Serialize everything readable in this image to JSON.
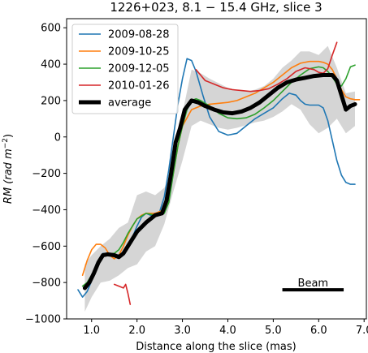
{
  "chart_data": {
    "type": "line",
    "title": "1226+023, 8.1 − 15.4 GHz, slice 3",
    "xlabel": "Distance along the slice (mas)",
    "ylabel_main": "RM (rad m",
    "ylabel_sup": "−2",
    "ylabel_close": ")",
    "xlim": [
      0.45,
      7.05
    ],
    "ylim": [
      -1000,
      650
    ],
    "xticks": [
      1.0,
      2.0,
      3.0,
      4.0,
      5.0,
      6.0,
      7.0
    ],
    "xtick_labels": [
      "1.0",
      "2.0",
      "3.0",
      "4.0",
      "5.0",
      "6.0",
      "7.0"
    ],
    "yticks": [
      -1000,
      -800,
      -600,
      -400,
      -200,
      0,
      200,
      400,
      600
    ],
    "ytick_labels": [
      "−1000",
      "−800",
      "−600",
      "−400",
      "−200",
      "0",
      "200",
      "400",
      "600"
    ],
    "grid": false,
    "legend_position": "top-left",
    "series": [
      {
        "name": "2009-08-28",
        "color": "#1f77b4",
        "x": [
          0.7,
          0.8,
          0.9,
          1.0,
          1.1,
          1.25,
          1.4,
          1.55,
          1.7,
          1.8,
          1.9,
          2.0,
          2.1,
          2.2,
          2.3,
          2.4,
          2.5,
          2.6,
          2.7,
          2.8,
          2.9,
          3.0,
          3.1,
          3.2,
          3.3,
          3.45,
          3.6,
          3.8,
          4.0,
          4.2,
          4.4,
          4.6,
          4.8,
          5.0,
          5.2,
          5.35,
          5.5,
          5.6,
          5.7,
          5.8,
          5.9,
          6.0,
          6.1,
          6.2,
          6.3,
          6.4,
          6.5,
          6.6,
          6.7,
          6.8
        ],
        "y": [
          -840,
          -880,
          -850,
          -790,
          -700,
          -640,
          -640,
          -650,
          -640,
          -600,
          -550,
          -490,
          -440,
          -420,
          -430,
          -430,
          -410,
          -330,
          -180,
          0,
          180,
          320,
          430,
          420,
          360,
          230,
          110,
          30,
          10,
          20,
          60,
          100,
          130,
          160,
          210,
          240,
          230,
          200,
          180,
          175,
          175,
          175,
          160,
          90,
          -20,
          -130,
          -210,
          -250,
          -260,
          -260
        ]
      },
      {
        "name": "2009-10-25",
        "color": "#ff7f0e",
        "x": [
          0.8,
          0.9,
          1.0,
          1.1,
          1.2,
          1.3,
          1.4,
          1.5,
          1.6,
          1.7,
          1.8,
          1.9,
          2.0,
          2.1,
          2.2,
          2.4,
          2.6,
          2.7,
          2.8,
          2.9,
          3.0,
          3.2,
          3.4,
          3.6,
          3.8,
          4.0,
          4.2,
          4.4,
          4.6,
          4.8,
          5.0,
          5.2,
          5.4,
          5.6,
          5.8,
          6.0,
          6.1,
          6.2,
          6.3,
          6.4,
          6.5,
          6.6,
          6.7,
          6.8,
          6.9
        ],
        "y": [
          -760,
          -680,
          -620,
          -590,
          -590,
          -610,
          -650,
          -670,
          -650,
          -600,
          -540,
          -490,
          -450,
          -430,
          -420,
          -420,
          -400,
          -330,
          -200,
          -50,
          60,
          150,
          170,
          180,
          185,
          190,
          200,
          220,
          240,
          270,
          300,
          340,
          380,
          405,
          415,
          415,
          410,
          400,
          370,
          320,
          260,
          220,
          210,
          205,
          205
        ]
      },
      {
        "name": "2009-12-05",
        "color": "#2ca02c",
        "x": [
          0.8,
          0.9,
          1.0,
          1.1,
          1.2,
          1.3,
          1.4,
          1.5,
          1.6,
          1.7,
          1.8,
          1.9,
          2.0,
          2.2,
          2.4,
          2.6,
          2.7,
          2.8,
          2.9,
          3.0,
          3.1,
          3.2,
          3.3,
          3.4,
          3.6,
          3.8,
          4.0,
          4.2,
          4.4,
          4.6,
          4.8,
          5.0,
          5.2,
          5.4,
          5.6,
          5.8,
          6.0,
          6.1,
          6.2,
          6.3,
          6.4,
          6.5,
          6.6,
          6.7,
          6.8
        ],
        "y": [
          -820,
          -800,
          -760,
          -710,
          -670,
          -640,
          -640,
          -640,
          -620,
          -580,
          -530,
          -490,
          -450,
          -420,
          -430,
          -420,
          -360,
          -200,
          -50,
          60,
          150,
          200,
          210,
          200,
          170,
          130,
          105,
          100,
          105,
          125,
          160,
          200,
          250,
          300,
          340,
          375,
          385,
          380,
          360,
          330,
          290,
          280,
          320,
          385,
          395
        ]
      },
      {
        "name": "2010-01-26",
        "color": "#d62728",
        "x": [
          1.5,
          1.6,
          1.7,
          1.75,
          1.8,
          1.85,
          null,
          3.3,
          3.4,
          3.5,
          3.7,
          3.9,
          4.1,
          4.3,
          4.5,
          4.7,
          4.9,
          5.1,
          5.3,
          5.5,
          5.7,
          5.9,
          6.0,
          6.1,
          6.2,
          6.3,
          6.4
        ],
        "y": [
          -810,
          -820,
          -830,
          -810,
          -860,
          -920,
          null,
          370,
          340,
          310,
          290,
          270,
          260,
          255,
          250,
          255,
          265,
          290,
          320,
          360,
          380,
          370,
          355,
          350,
          375,
          450,
          520
        ]
      },
      {
        "name": "average",
        "color": "#000000",
        "x": [
          0.85,
          0.95,
          1.05,
          1.15,
          1.25,
          1.35,
          1.5,
          1.6,
          1.7,
          1.8,
          1.9,
          2.0,
          2.2,
          2.4,
          2.55,
          2.65,
          2.75,
          2.85,
          2.95,
          3.05,
          3.2,
          3.35,
          3.5,
          3.7,
          3.9,
          4.1,
          4.3,
          4.5,
          4.7,
          4.9,
          5.1,
          5.3,
          5.5,
          5.7,
          5.9,
          6.1,
          6.3,
          6.4,
          6.5,
          6.6,
          6.7,
          6.8
        ],
        "y": [
          -830,
          -800,
          -750,
          -690,
          -650,
          -645,
          -650,
          -660,
          -640,
          -600,
          -560,
          -520,
          -470,
          -430,
          -420,
          -350,
          -200,
          -30,
          50,
          150,
          200,
          190,
          170,
          150,
          135,
          130,
          140,
          160,
          190,
          230,
          270,
          300,
          315,
          325,
          335,
          340,
          340,
          310,
          230,
          150,
          170,
          180
        ]
      }
    ],
    "uncertainty_band": {
      "x": [
        0.85,
        1.0,
        1.2,
        1.4,
        1.6,
        1.8,
        2.0,
        2.2,
        2.4,
        2.6,
        2.8,
        3.0,
        3.2,
        3.4,
        3.6,
        3.8,
        4.0,
        4.2,
        4.4,
        4.6,
        4.8,
        5.0,
        5.2,
        5.4,
        5.6,
        5.8,
        6.0,
        6.2,
        6.4,
        6.6,
        6.8
      ],
      "lower": [
        -960,
        -880,
        -800,
        -790,
        -760,
        -720,
        -700,
        -630,
        -600,
        -480,
        -300,
        -130,
        60,
        90,
        70,
        50,
        40,
        50,
        65,
        80,
        90,
        110,
        140,
        180,
        150,
        70,
        20,
        50,
        100,
        20,
        60
      ],
      "upper": [
        -700,
        -650,
        -600,
        -560,
        -500,
        -470,
        -320,
        -300,
        -320,
        -280,
        -200,
        130,
        370,
        350,
        320,
        295,
        270,
        260,
        250,
        260,
        280,
        320,
        380,
        420,
        470,
        470,
        450,
        500,
        380,
        240,
        250
      ]
    },
    "annotation": {
      "text": "Beam",
      "x": [
        5.2,
        6.55
      ],
      "y": -840
    }
  }
}
